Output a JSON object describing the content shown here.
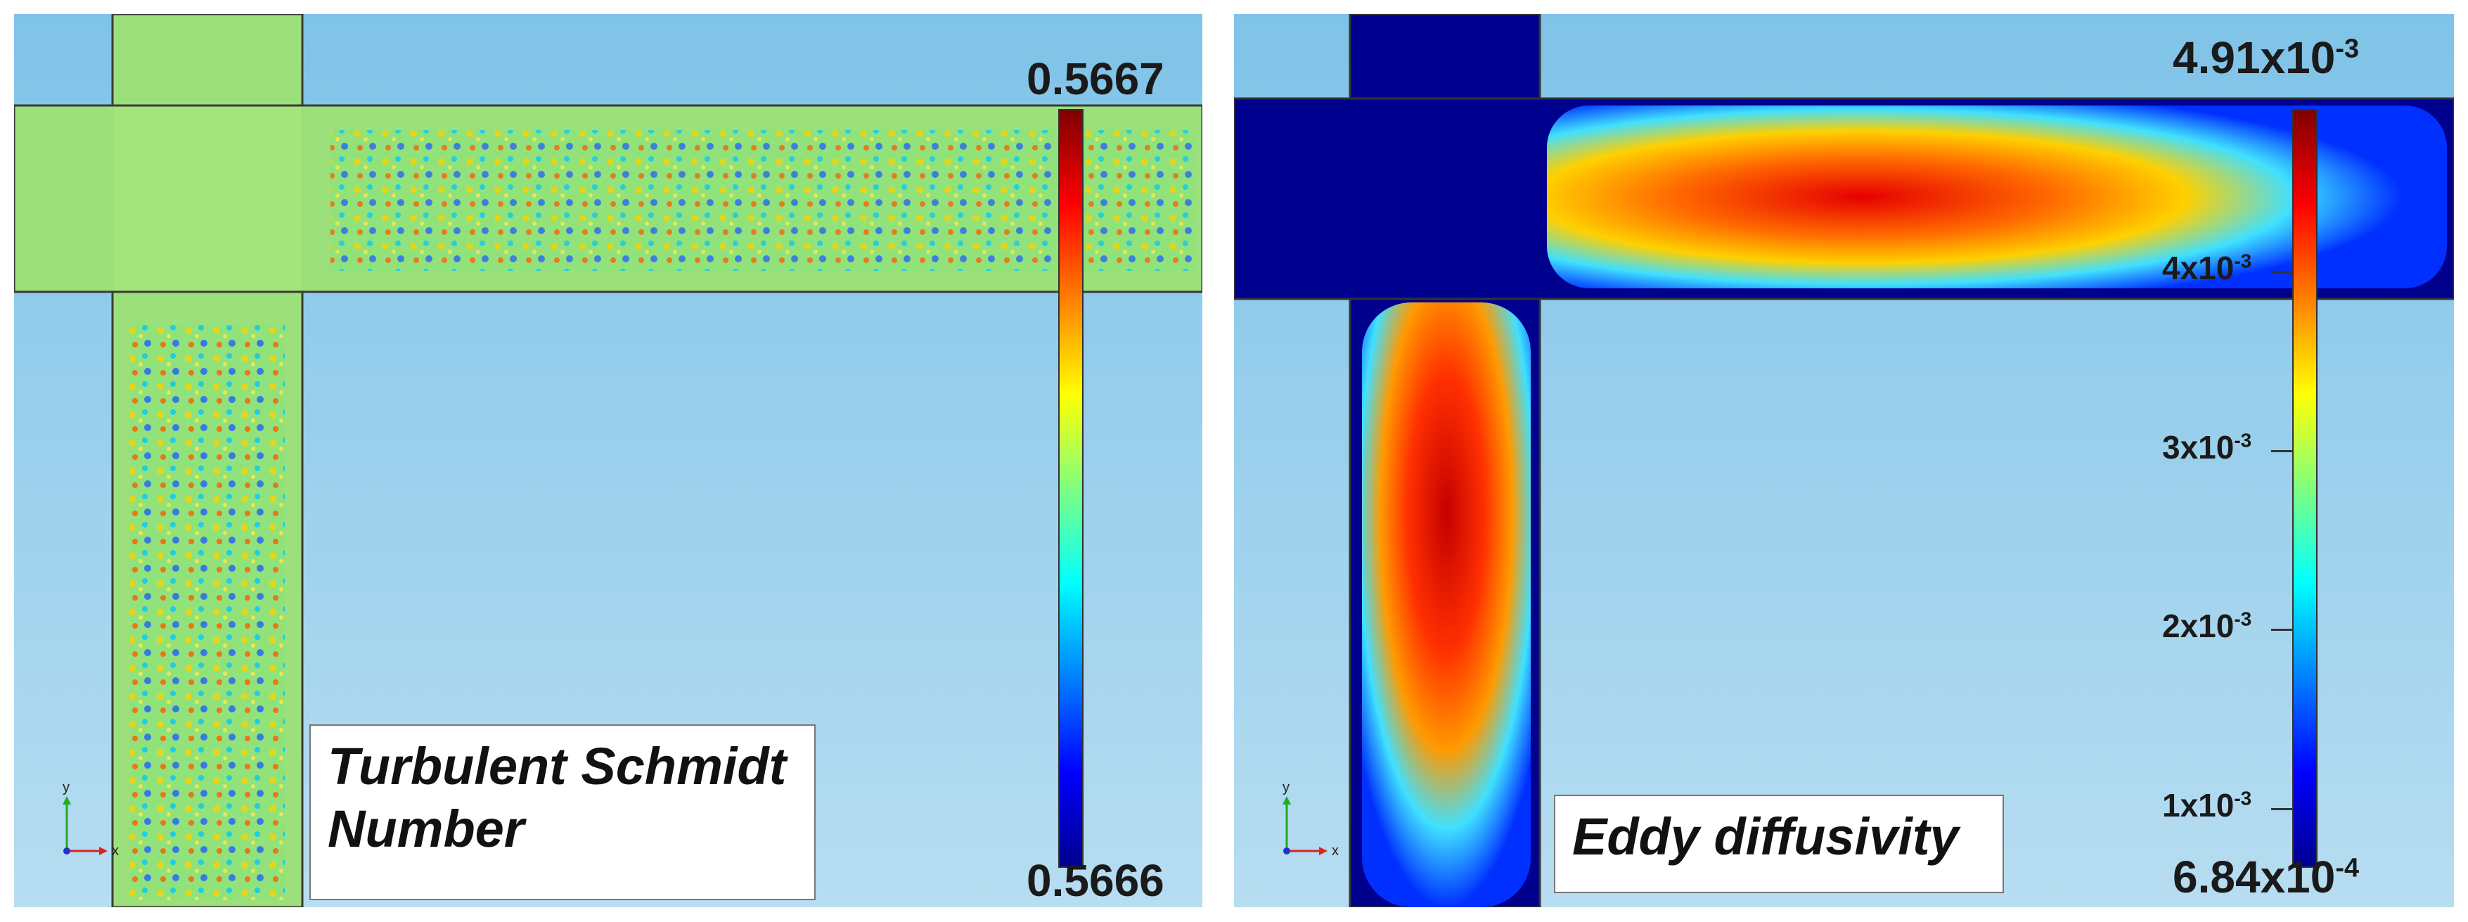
{
  "panels": [
    {
      "title": "Turbulent Schmidt Number",
      "title_line1": "Turbulent Schmidt",
      "title_line2": "Number",
      "colorbar": {
        "max": "0.5667",
        "min": "0.5666",
        "ticks": []
      },
      "axis_labels": {
        "y": "y",
        "x": "x"
      }
    },
    {
      "title": "Eddy diffusivity",
      "colorbar": {
        "max_base": "4.91x10",
        "max_exp": "-3",
        "min_base": "6.84x10",
        "min_exp": "-4",
        "ticks": [
          {
            "base": "4x10",
            "exp": "-3",
            "value": 0.004
          },
          {
            "base": "3x10",
            "exp": "-3",
            "value": 0.003
          },
          {
            "base": "2x10",
            "exp": "-3",
            "value": 0.002
          },
          {
            "base": "1x10",
            "exp": "-3",
            "value": 0.001
          }
        ],
        "range": [
          0.000684,
          0.00491
        ]
      },
      "axis_labels": {
        "y": "y",
        "x": "x"
      }
    }
  ],
  "colors": {
    "background_top": "#7fc3e8",
    "background_bottom": "#b7ddf1",
    "pipe_left": "#7fe27a",
    "pipe_right_base": "#00008f",
    "hot": "#ff2a00",
    "warm": "#ffd000"
  }
}
